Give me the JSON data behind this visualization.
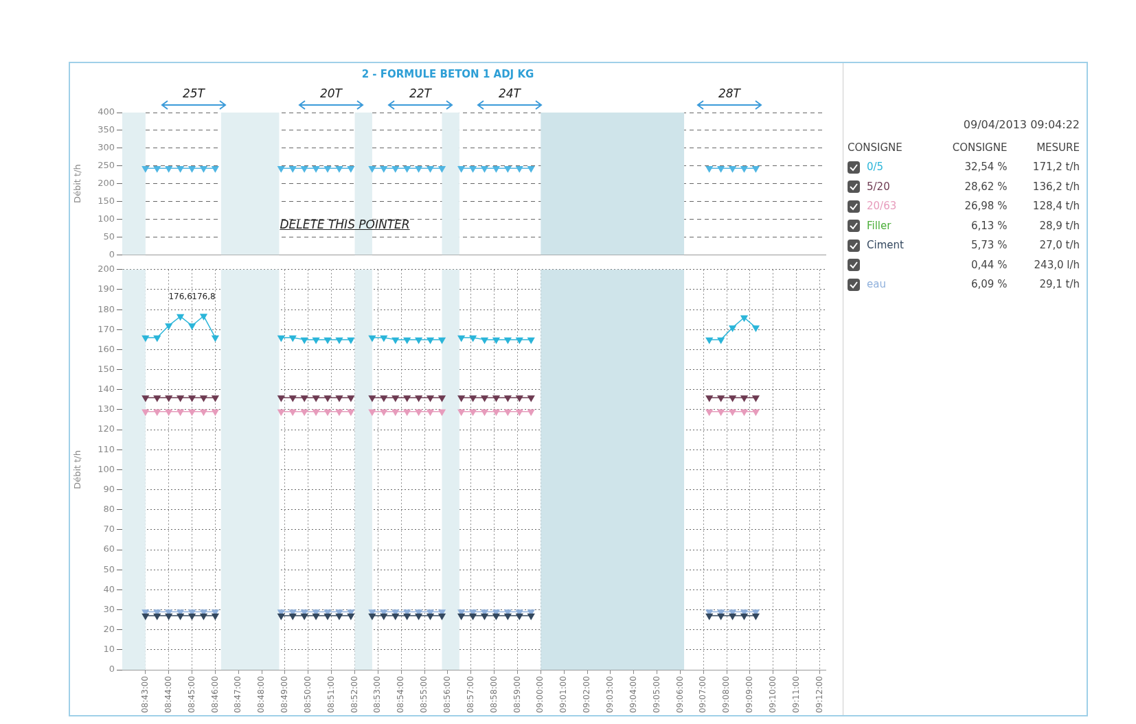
{
  "chart_data": [
    {
      "type": "line",
      "title": "2 - FORMULE BETON 1 ADJ KG",
      "ylabel": "Débit t/h",
      "marker": "triangle",
      "line_style": "solid",
      "grid": true,
      "legend": false,
      "tick_labels": "y",
      "x": [
        8.716667,
        8.725,
        8.733333,
        8.741667,
        8.75,
        8.758333,
        8.766667,
        8.791667,
        8.813889,
        8.822222,
        8.830556,
        8.838889,
        8.847222,
        8.855556,
        8.863889,
        8.869444,
        8.879167,
        8.8875,
        8.895833,
        8.904167,
        8.9125,
        8.920833,
        8.929167,
        8.933333,
        8.943056,
        8.951389,
        8.959722,
        8.968056,
        8.976389,
        8.984722,
        8.993056,
        9.05,
        9.120833,
        9.129167,
        9.1375,
        9.145833,
        9.154167
      ],
      "series": [
        {
          "color": "#4fb6e3",
          "values": [
            243,
            243,
            243,
            243,
            243,
            243,
            243,
            null,
            243,
            243,
            243,
            243,
            243,
            243,
            243,
            null,
            243,
            243,
            243,
            243,
            243,
            243,
            243,
            null,
            243,
            243,
            243,
            243,
            243,
            243,
            243,
            null,
            243,
            243,
            243,
            243,
            243
          ]
        }
      ],
      "xlim": [
        8.7,
        9.204167
      ],
      "xticks": [
        {
          "value": 8.716667,
          "label": null
        },
        {
          "value": 8.733333,
          "label": null
        },
        {
          "value": 8.75,
          "label": null
        },
        {
          "value": 8.766667,
          "label": null
        },
        {
          "value": 8.783333,
          "label": null
        },
        {
          "value": 8.8,
          "label": null
        },
        {
          "value": 8.816667,
          "label": null
        },
        {
          "value": 8.833333,
          "label": null
        },
        {
          "value": 8.85,
          "label": null
        },
        {
          "value": 8.866667,
          "label": null
        },
        {
          "value": 8.883333,
          "label": null
        },
        {
          "value": 8.9,
          "label": null
        },
        {
          "value": 8.916667,
          "label": null
        },
        {
          "value": 8.933333,
          "label": null
        },
        {
          "value": 8.95,
          "label": null
        },
        {
          "value": 8.966667,
          "label": null
        },
        {
          "value": 8.983333,
          "label": null
        },
        {
          "value": 9.0,
          "label": null
        },
        {
          "value": 9.016667,
          "label": null
        },
        {
          "value": 9.033333,
          "label": null
        },
        {
          "value": 9.05,
          "label": null
        },
        {
          "value": 9.066667,
          "label": null
        },
        {
          "value": 9.083333,
          "label": null
        },
        {
          "value": 9.1,
          "label": null
        },
        {
          "value": 9.116667,
          "label": null
        },
        {
          "value": 9.133333,
          "label": null
        },
        {
          "value": 9.15,
          "label": null
        },
        {
          "value": 9.166667,
          "label": null
        },
        {
          "value": 9.183333,
          "label": null
        },
        {
          "value": 9.2,
          "label": null
        }
      ],
      "ylim": [
        0,
        400
      ],
      "yticks": [
        0,
        50,
        100,
        150,
        200,
        250,
        300,
        350,
        400
      ],
      "bands": [
        {
          "axis": "x",
          "from": 8.7,
          "to": 8.716667,
          "color": "#e2eff2"
        },
        {
          "axis": "x",
          "from": 8.770833,
          "to": 8.8125,
          "color": "#e2eff2"
        },
        {
          "axis": "x",
          "from": 8.866667,
          "to": 8.879167,
          "color": "#e2eff2"
        },
        {
          "axis": "x",
          "from": 8.929167,
          "to": 8.941667,
          "color": "#e2eff2"
        },
        {
          "axis": "x",
          "from": 9.0,
          "to": 9.102778,
          "color": "#cfe4ea"
        }
      ],
      "annotations": [
        "25T",
        "20T",
        "22T",
        "24T",
        "28T",
        "DELETE THIS POINTER"
      ]
    },
    {
      "type": "line",
      "ylabel": "Débit t/h",
      "marker": "triangle",
      "line_style": "solid",
      "grid": true,
      "legend": false,
      "x": [
        8.716667,
        8.725,
        8.733333,
        8.741667,
        8.75,
        8.758333,
        8.766667,
        8.791667,
        8.813889,
        8.822222,
        8.830556,
        8.838889,
        8.847222,
        8.855556,
        8.863889,
        8.869444,
        8.879167,
        8.8875,
        8.895833,
        8.904167,
        8.9125,
        8.920833,
        8.929167,
        8.933333,
        8.943056,
        8.951389,
        8.959722,
        8.968056,
        8.976389,
        8.984722,
        8.993056,
        9.05,
        9.120833,
        9.129167,
        9.1375,
        9.145833,
        9.154167
      ],
      "series": [
        {
          "color": "#2bb5d9",
          "values": [
            166,
            166,
            172,
            176.6,
            172,
            176.8,
            166,
            null,
            166,
            166,
            165,
            165,
            165,
            165,
            165,
            null,
            166,
            166,
            165,
            165,
            165,
            165,
            165,
            null,
            166,
            166,
            165,
            165,
            165,
            165,
            165,
            null,
            165,
            165,
            171,
            176,
            171
          ],
          "value_labels": [
            null,
            null,
            null,
            "176,6",
            null,
            "176,8",
            null,
            null,
            null,
            null,
            null,
            null,
            null,
            null,
            null,
            null,
            null,
            null,
            null,
            null,
            null,
            null,
            null,
            null,
            null,
            null,
            null,
            null,
            null,
            null,
            null,
            null,
            null,
            null,
            null,
            null,
            null
          ]
        },
        {
          "color": "#6e3b52",
          "values": [
            136,
            136,
            136,
            136,
            136,
            136,
            136,
            null,
            136,
            136,
            136,
            136,
            136,
            136,
            136,
            null,
            136,
            136,
            136,
            136,
            136,
            136,
            136,
            null,
            136,
            136,
            136,
            136,
            136,
            136,
            136,
            null,
            136,
            136,
            136,
            136,
            136
          ]
        },
        {
          "color": "#e79cbc",
          "values": [
            129,
            129,
            129,
            129,
            129,
            129,
            129,
            null,
            129,
            129,
            129,
            129,
            129,
            129,
            129,
            null,
            129,
            129,
            129,
            129,
            129,
            129,
            129,
            null,
            129,
            129,
            129,
            129,
            129,
            129,
            129,
            null,
            129,
            129,
            129,
            129,
            129
          ]
        },
        {
          "color": "#34485f",
          "values": [
            27,
            27,
            27,
            27,
            27,
            27,
            27,
            null,
            27,
            27,
            27,
            27,
            27,
            27,
            27,
            null,
            27,
            27,
            27,
            27,
            27,
            27,
            27,
            null,
            27,
            27,
            27,
            27,
            27,
            27,
            27,
            null,
            27,
            27,
            27,
            27,
            27
          ]
        },
        {
          "color": "#8fb0dc",
          "values": [
            29,
            29,
            29,
            29,
            29,
            29,
            29,
            null,
            29,
            29,
            29,
            29,
            29,
            29,
            29,
            null,
            29,
            29,
            29,
            29,
            29,
            29,
            29,
            null,
            29,
            29,
            29,
            29,
            29,
            29,
            29,
            null,
            29,
            29,
            29,
            29,
            29
          ]
        }
      ],
      "xlim": [
        8.7,
        9.204167
      ],
      "xticks": [
        {
          "value": 8.716667,
          "label": "08:43:00"
        },
        {
          "value": 8.733333,
          "label": "08:44:00"
        },
        {
          "value": 8.75,
          "label": "08:45:00"
        },
        {
          "value": 8.766667,
          "label": "08:46:00"
        },
        {
          "value": 8.783333,
          "label": "08:47:00"
        },
        {
          "value": 8.8,
          "label": "08:48:00"
        },
        {
          "value": 8.816667,
          "label": "08:49:00"
        },
        {
          "value": 8.833333,
          "label": "08:50:00"
        },
        {
          "value": 8.85,
          "label": "08:51:00"
        },
        {
          "value": 8.866667,
          "label": "08:52:00"
        },
        {
          "value": 8.883333,
          "label": "08:53:00"
        },
        {
          "value": 8.9,
          "label": "08:54:00"
        },
        {
          "value": 8.916667,
          "label": "08:55:00"
        },
        {
          "value": 8.933333,
          "label": "08:56:00"
        },
        {
          "value": 8.95,
          "label": "08:57:00"
        },
        {
          "value": 8.966667,
          "label": "08:58:00"
        },
        {
          "value": 8.983333,
          "label": "08:59:00"
        },
        {
          "value": 9.0,
          "label": "09:00:00"
        },
        {
          "value": 9.016667,
          "label": "09:01:00"
        },
        {
          "value": 9.033333,
          "label": "09:02:00"
        },
        {
          "value": 9.05,
          "label": "09:03:00"
        },
        {
          "value": 9.066667,
          "label": "09:04:00"
        },
        {
          "value": 9.083333,
          "label": "09:05:00"
        },
        {
          "value": 9.1,
          "label": "09:06:00"
        },
        {
          "value": 9.116667,
          "label": "09:07:00"
        },
        {
          "value": 9.133333,
          "label": "09:08:00"
        },
        {
          "value": 9.15,
          "label": "09:09:00"
        },
        {
          "value": 9.166667,
          "label": "09:10:00"
        },
        {
          "value": 9.183333,
          "label": "09:11:00"
        },
        {
          "value": 9.2,
          "label": "09:12:00"
        }
      ],
      "ylim": [
        0,
        200
      ],
      "yticks": [
        0,
        10,
        20,
        30,
        40,
        50,
        60,
        70,
        80,
        90,
        100,
        110,
        120,
        130,
        140,
        150,
        160,
        170,
        180,
        190,
        200
      ],
      "bands": [
        {
          "axis": "x",
          "from": 8.7,
          "to": 8.716667,
          "color": "#e2eff2"
        },
        {
          "axis": "x",
          "from": 8.770833,
          "to": 8.8125,
          "color": "#e2eff2"
        },
        {
          "axis": "x",
          "from": 8.866667,
          "to": 8.879167,
          "color": "#e2eff2"
        },
        {
          "axis": "x",
          "from": 8.929167,
          "to": 8.941667,
          "color": "#e2eff2"
        },
        {
          "axis": "x",
          "from": 9.0,
          "to": 9.102778,
          "color": "#cfe4ea"
        }
      ]
    },
    {
      "type": "other",
      "title": "09/04/2013 09:04:22",
      "legend_title": "CONSIGNE",
      "categories": [
        "0/5",
        "5/20",
        "20/63",
        "Filler",
        "Ciment",
        null,
        "eau"
      ],
      "colors": [
        "#2bb5d9",
        "#6e3b52",
        "#e79cbc",
        "#4caf3a",
        "#34485f",
        "#6ec3e8",
        "#8fb0dc"
      ],
      "annotations": [
        "CONSIGNE",
        "MESURE",
        "32,54 %",
        "171,2 t/h",
        "28,62 %",
        "136,2 t/h",
        "26,98 %",
        "128,4 t/h",
        "6,13 %",
        "28,9 t/h",
        "5,73 %",
        "27,0 t/h",
        "0,44 %",
        "243,0 l/h",
        "6,09 %",
        "29,1 t/h"
      ]
    }
  ]
}
